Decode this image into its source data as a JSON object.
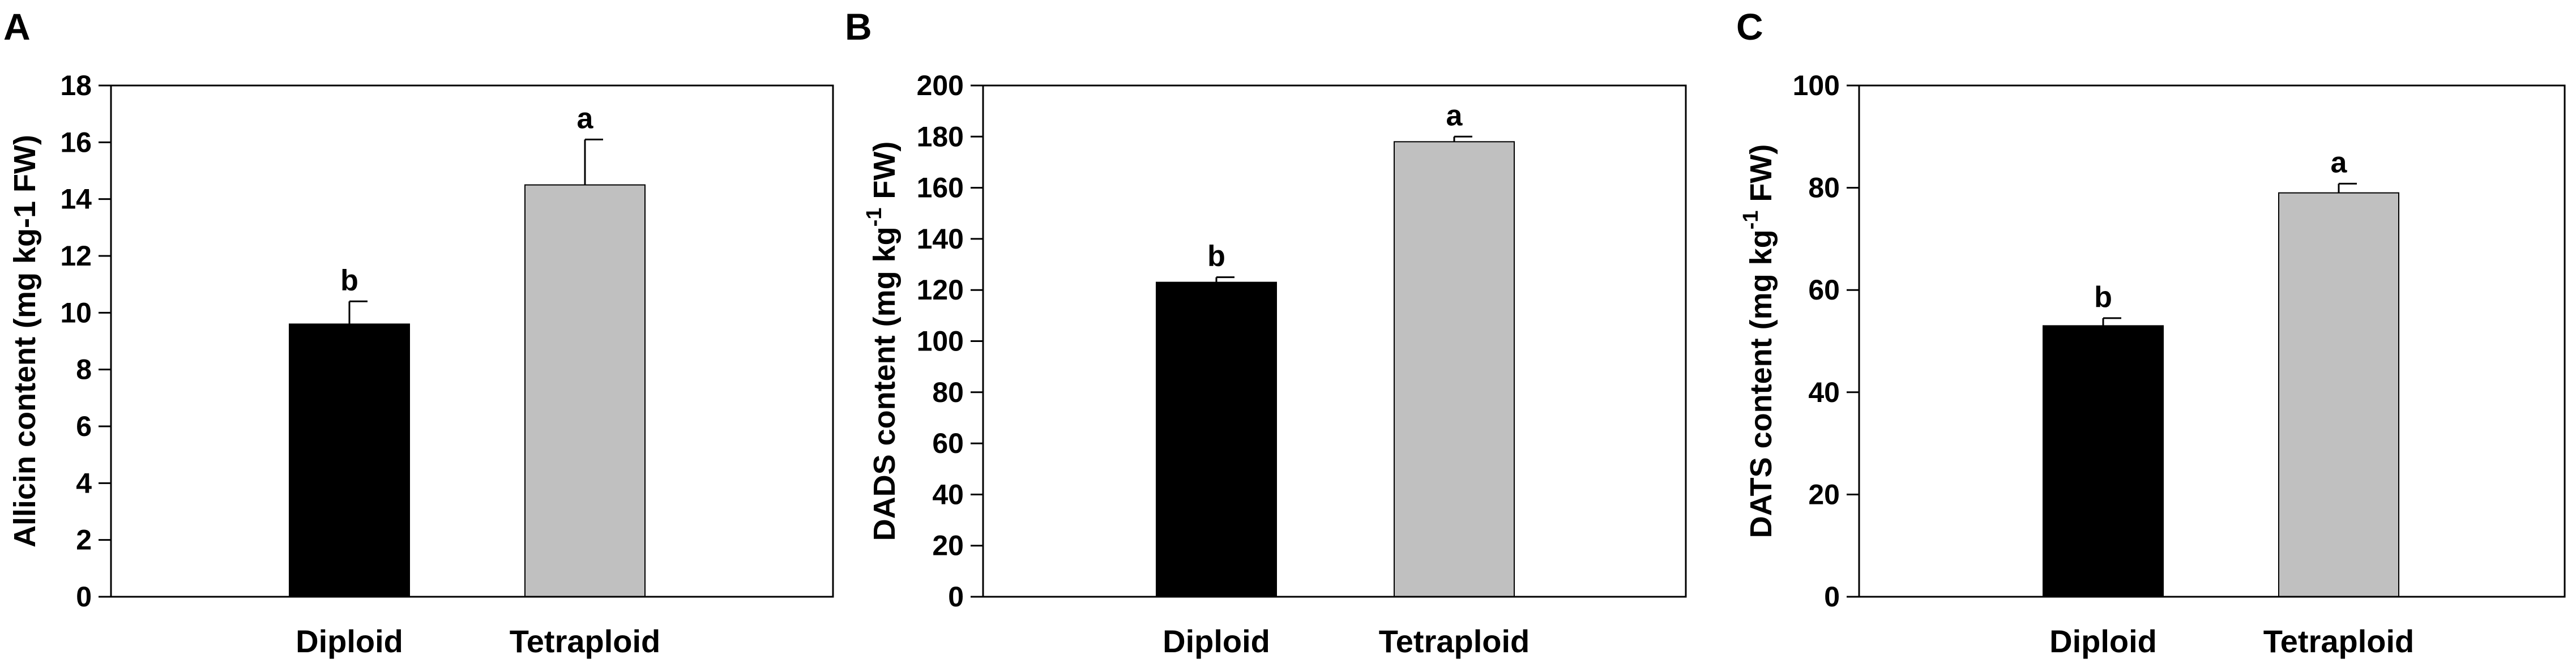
{
  "chart_data": [
    {
      "panel": "A",
      "type": "bar",
      "categories": [
        "Diploid",
        "Tetraploid"
      ],
      "values": [
        9.6,
        14.5
      ],
      "errors": [
        0.8,
        1.6
      ],
      "significance": [
        "b",
        "a"
      ],
      "ylabel": "Allicin content (mg kg-1 FW)",
      "ylabel_parts": {
        "pre": "Allicin content (mg kg-1 FW)",
        "sup": "",
        "post": ""
      },
      "ylim": [
        0,
        18
      ],
      "yticks": [
        0,
        2,
        4,
        6,
        8,
        10,
        12,
        14,
        16,
        18
      ],
      "bar_colors": [
        "#000000",
        "#c0c0c0"
      ],
      "grid": false
    },
    {
      "panel": "B",
      "type": "bar",
      "categories": [
        "Diploid",
        "Tetraploid"
      ],
      "values": [
        123,
        178
      ],
      "errors": [
        2,
        2
      ],
      "significance": [
        "b",
        "a"
      ],
      "ylabel": "DADS content (mg kg-1 FW)",
      "ylabel_parts": {
        "pre": "DADS content (mg kg",
        "sup": "-1",
        "post": " FW)"
      },
      "ylim": [
        0,
        200
      ],
      "yticks": [
        0,
        20,
        40,
        60,
        80,
        100,
        120,
        140,
        160,
        180,
        200
      ],
      "bar_colors": [
        "#000000",
        "#c0c0c0"
      ],
      "grid": false
    },
    {
      "panel": "C",
      "type": "bar",
      "categories": [
        "Diploid",
        "Tetraploid"
      ],
      "values": [
        53,
        79
      ],
      "errors": [
        1.5,
        1.8
      ],
      "significance": [
        "b",
        "a"
      ],
      "ylabel": "DATS content (mg kg-1 FW)",
      "ylabel_parts": {
        "pre": "DATS content (mg kg",
        "sup": "-1",
        "post": " FW)"
      },
      "ylim": [
        0,
        100
      ],
      "yticks": [
        0,
        20,
        40,
        60,
        80,
        100
      ],
      "bar_colors": [
        "#000000",
        "#c0c0c0"
      ],
      "grid": false
    }
  ]
}
